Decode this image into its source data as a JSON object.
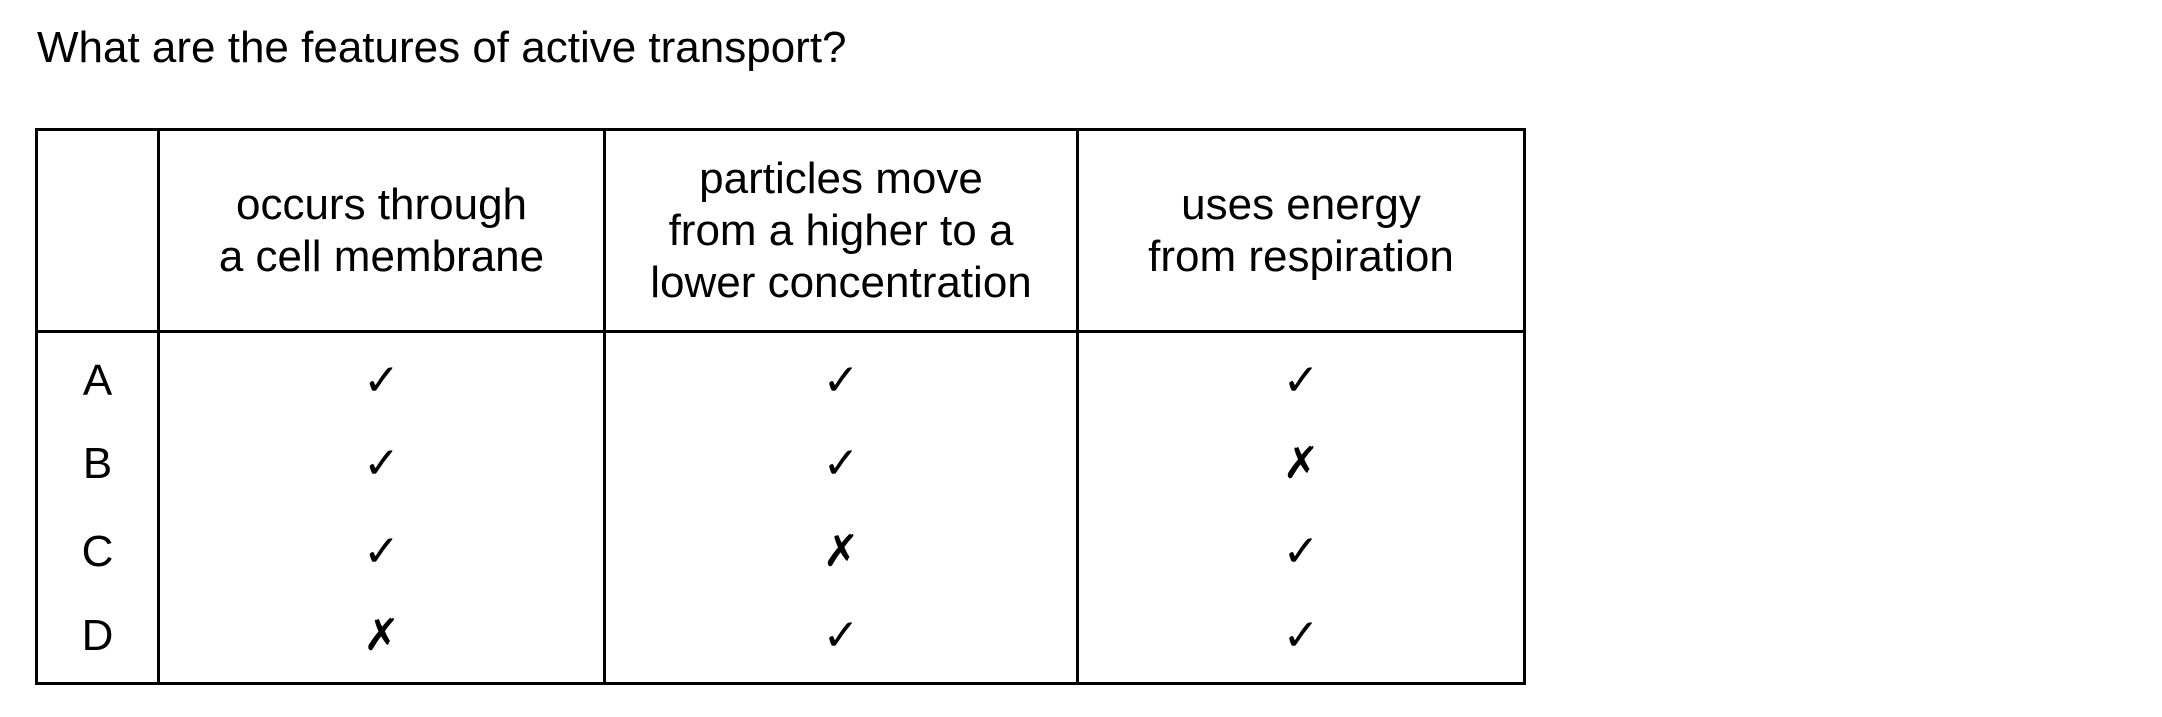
{
  "question": "What are the features of active transport?",
  "table": {
    "corner": "",
    "columns": [
      "occurs through\na cell membrane",
      "particles move\nfrom a higher to a\nlower concentration",
      "uses energy\nfrom respiration"
    ],
    "rows": [
      {
        "label": "A",
        "marks": [
          "✓",
          "✓",
          "✓"
        ]
      },
      {
        "label": "B",
        "marks": [
          "✓",
          "✓",
          "✗"
        ]
      },
      {
        "label": "C",
        "marks": [
          "✓",
          "✗",
          "✓"
        ]
      },
      {
        "label": "D",
        "marks": [
          "✗",
          "✓",
          "✓"
        ]
      }
    ]
  }
}
